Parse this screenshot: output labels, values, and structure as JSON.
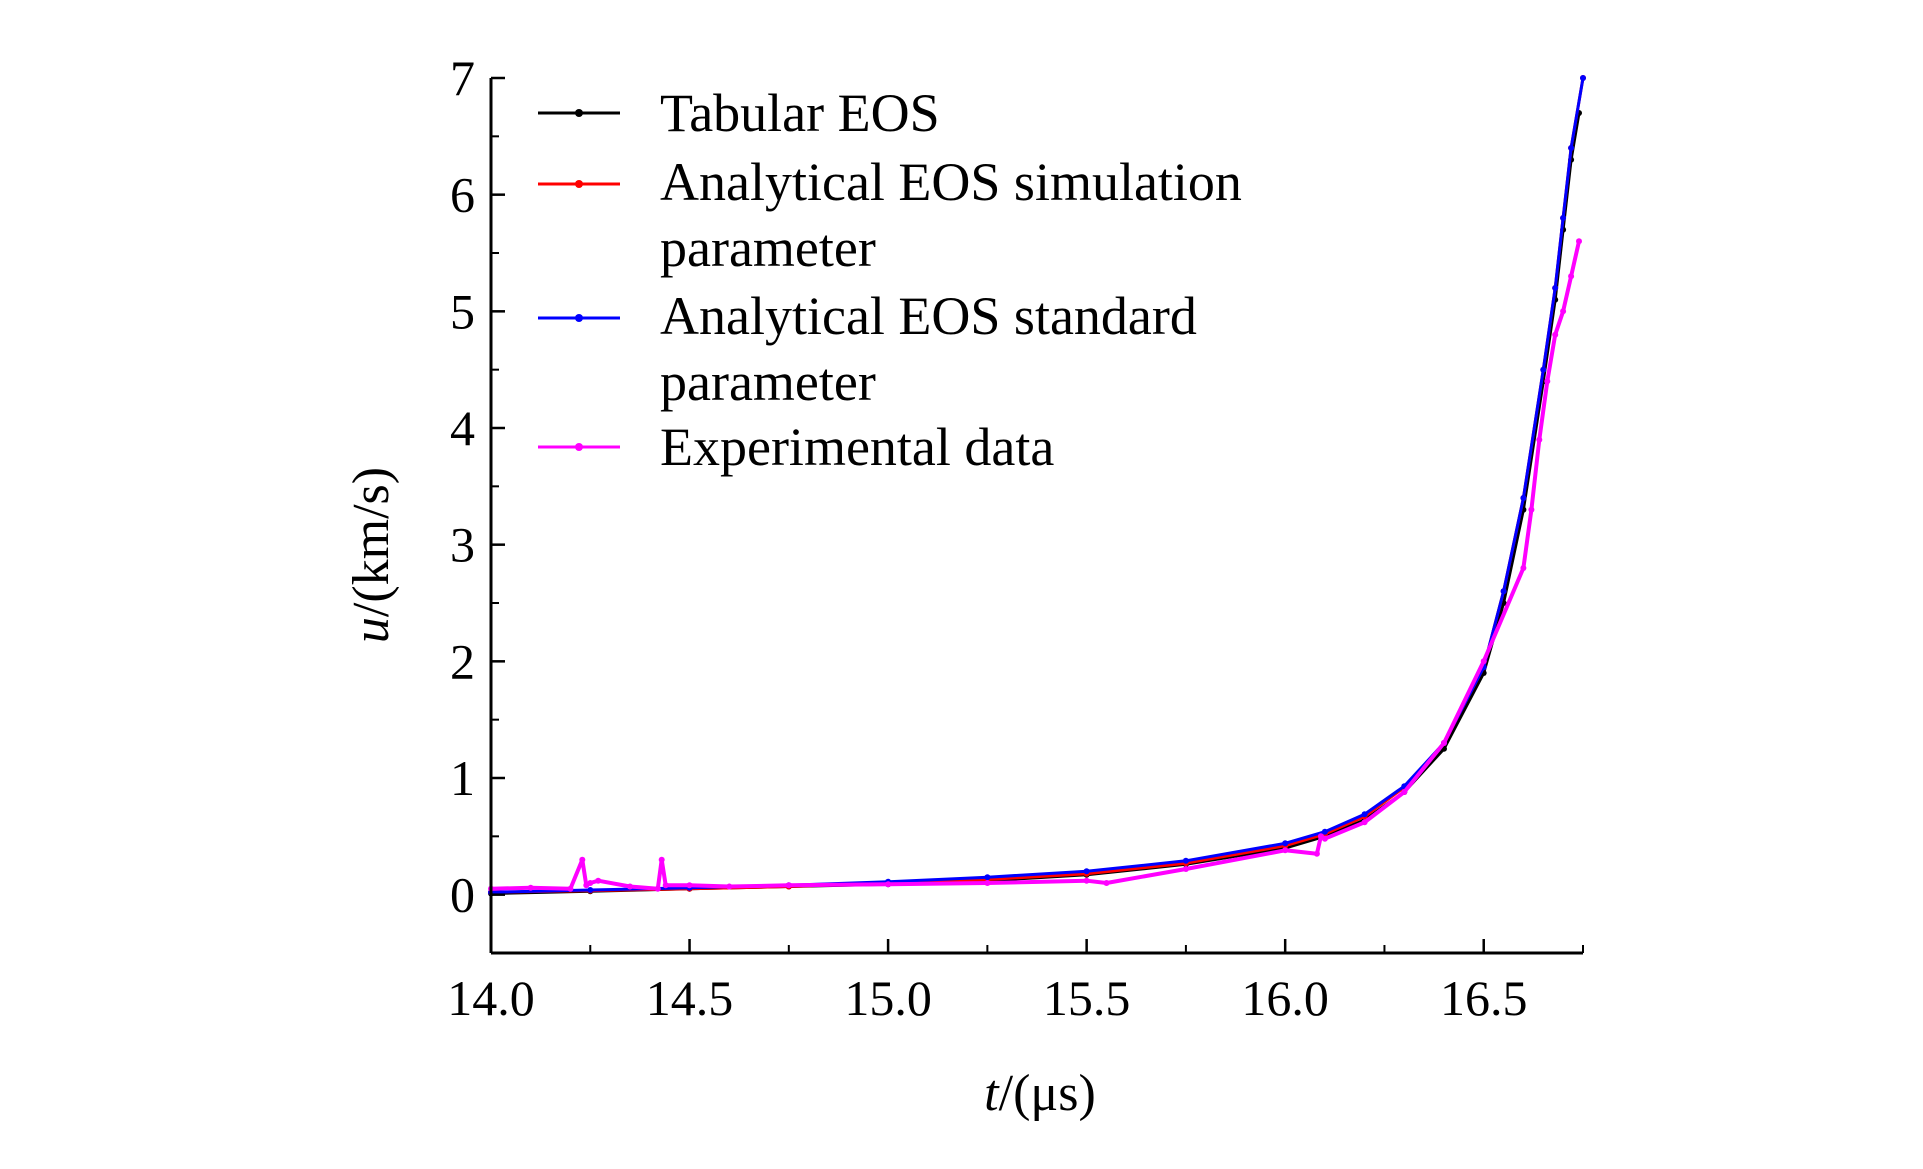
{
  "chart_data": {
    "type": "line",
    "xlabel": {
      "var": "t",
      "unit": "/(μs)"
    },
    "ylabel": {
      "var": "u",
      "unit": "/(km/s)"
    },
    "xlim": [
      14.0,
      16.75
    ],
    "ylim": [
      -0.5,
      7
    ],
    "xticks": [
      14.0,
      14.5,
      15.0,
      15.5,
      16.0,
      16.5
    ],
    "xtick_labels": [
      "14.0",
      "14.5",
      "15.0",
      "15.5",
      "16.0",
      "16.5"
    ],
    "yticks": [
      0,
      1,
      2,
      3,
      4,
      5,
      6,
      7
    ],
    "ytick_labels": [
      "0",
      "1",
      "2",
      "3",
      "4",
      "5",
      "6",
      "7"
    ],
    "grid": false,
    "legend_position": "top-left",
    "series": [
      {
        "name": "Tabular EOS",
        "color": "#000000",
        "x": [
          14.0,
          14.25,
          14.5,
          14.75,
          15.0,
          15.25,
          15.5,
          15.75,
          16.0,
          16.1,
          16.2,
          16.3,
          16.4,
          16.5,
          16.55,
          16.6,
          16.65,
          16.68,
          16.7,
          16.72,
          16.74
        ],
        "y": [
          0.01,
          0.03,
          0.05,
          0.07,
          0.09,
          0.12,
          0.17,
          0.26,
          0.4,
          0.5,
          0.64,
          0.88,
          1.25,
          1.9,
          2.5,
          3.3,
          4.4,
          5.1,
          5.7,
          6.3,
          6.7
        ]
      },
      {
        "name": "Analytical EOS simulation parameter",
        "color": "#ff0000",
        "x": [
          14.0,
          14.25,
          14.5,
          14.75,
          15.0,
          15.25,
          15.5,
          15.75,
          16.0,
          16.1,
          16.2,
          16.3,
          16.4,
          16.5,
          16.55,
          16.6,
          16.65,
          16.68,
          16.7,
          16.72,
          16.75
        ],
        "y": [
          0.02,
          0.035,
          0.05,
          0.07,
          0.1,
          0.13,
          0.18,
          0.27,
          0.42,
          0.52,
          0.67,
          0.92,
          1.3,
          1.95,
          2.6,
          3.4,
          4.5,
          5.2,
          5.8,
          6.4,
          7.0
        ]
      },
      {
        "name": "Analytical EOS standard parameter",
        "color": "#0000ff",
        "x": [
          14.0,
          14.25,
          14.5,
          14.75,
          15.0,
          15.25,
          15.5,
          15.75,
          16.0,
          16.1,
          16.2,
          16.3,
          16.4,
          16.5,
          16.55,
          16.6,
          16.65,
          16.68,
          16.7,
          16.72,
          16.75
        ],
        "y": [
          0.02,
          0.04,
          0.06,
          0.08,
          0.11,
          0.15,
          0.2,
          0.29,
          0.44,
          0.54,
          0.69,
          0.93,
          1.3,
          1.95,
          2.6,
          3.4,
          4.5,
          5.2,
          5.8,
          6.4,
          7.0
        ]
      },
      {
        "name": "Experimental data",
        "color": "#ff00ff",
        "x": [
          14.0,
          14.1,
          14.2,
          14.23,
          14.24,
          14.25,
          14.27,
          14.35,
          14.42,
          14.43,
          14.44,
          14.5,
          14.6,
          14.75,
          15.0,
          15.25,
          15.5,
          15.55,
          15.75,
          16.0,
          16.08,
          16.09,
          16.1,
          16.2,
          16.3,
          16.4,
          16.5,
          16.6,
          16.62,
          16.64,
          16.66,
          16.68,
          16.7,
          16.72,
          16.74
        ],
        "y": [
          0.05,
          0.06,
          0.05,
          0.3,
          0.08,
          0.1,
          0.12,
          0.07,
          0.05,
          0.3,
          0.08,
          0.08,
          0.07,
          0.08,
          0.09,
          0.1,
          0.12,
          0.1,
          0.22,
          0.38,
          0.35,
          0.5,
          0.48,
          0.62,
          0.88,
          1.3,
          2.0,
          2.8,
          3.3,
          3.9,
          4.4,
          4.8,
          5.0,
          5.3,
          5.6
        ]
      }
    ]
  }
}
